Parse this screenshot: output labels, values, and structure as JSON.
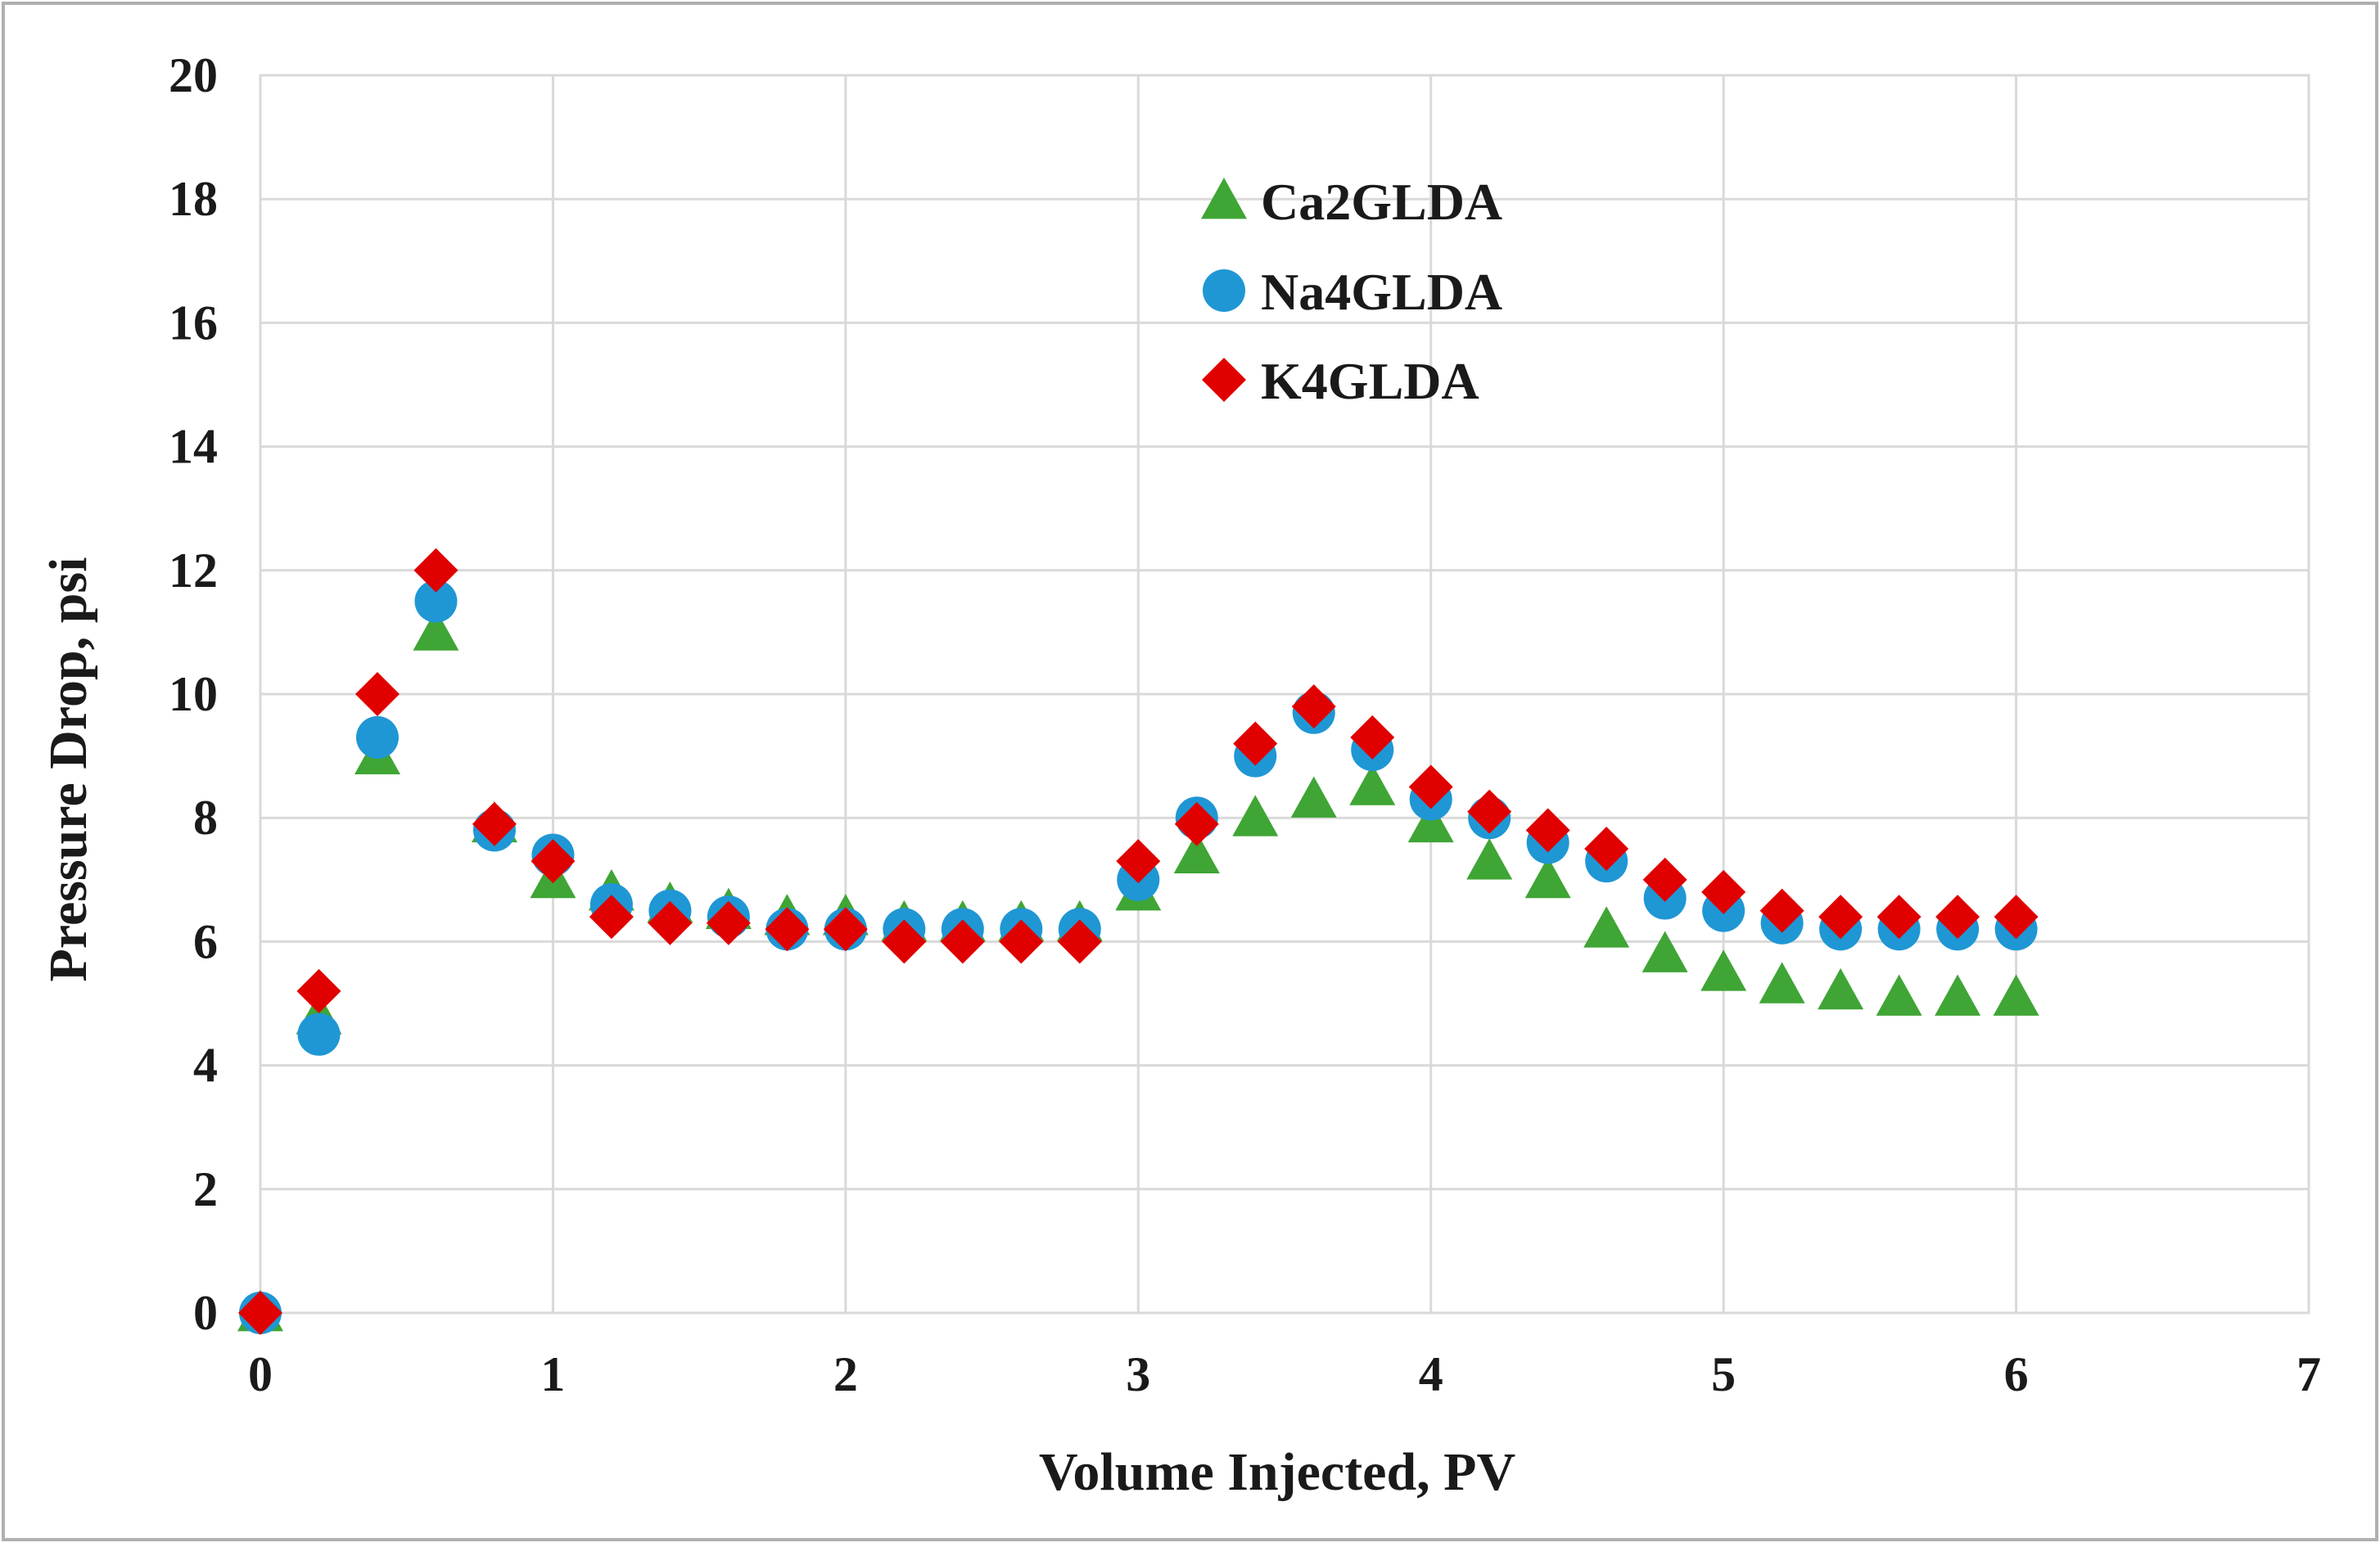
{
  "chart_data": {
    "type": "scatter",
    "title": "",
    "xlabel": "Volume Injected, PV",
    "ylabel": "Pressure Drop, psi",
    "xlim": [
      0,
      7
    ],
    "ylim": [
      0,
      20
    ],
    "xticks": [
      0,
      1,
      2,
      3,
      4,
      5,
      6,
      7
    ],
    "yticks": [
      0,
      2,
      4,
      6,
      8,
      10,
      12,
      14,
      16,
      18,
      20
    ],
    "grid": true,
    "legend_position": "top-center",
    "x": [
      0,
      0.2,
      0.4,
      0.6,
      0.8,
      1.0,
      1.2,
      1.4,
      1.6,
      1.8,
      2.0,
      2.2,
      2.4,
      2.6,
      2.8,
      3.0,
      3.2,
      3.4,
      3.6,
      3.8,
      4.0,
      4.2,
      4.4,
      4.6,
      4.8,
      5.0,
      5.2,
      5.4,
      5.6,
      5.8,
      6.0
    ],
    "series": [
      {
        "name": "Ca2GLDA",
        "marker": "triangle",
        "color": "#3FA535",
        "values": [
          0,
          4.8,
          9.0,
          11.0,
          7.9,
          7.0,
          6.8,
          6.6,
          6.5,
          6.4,
          6.4,
          6.3,
          6.3,
          6.3,
          6.3,
          6.8,
          7.4,
          8.0,
          8.3,
          8.5,
          7.9,
          7.3,
          7.0,
          6.2,
          5.8,
          5.5,
          5.3,
          5.2,
          5.1,
          5.1,
          5.1
        ]
      },
      {
        "name": "Na4GLDA",
        "marker": "circle",
        "color": "#1F97D4",
        "values": [
          0,
          4.5,
          9.3,
          11.5,
          7.8,
          7.4,
          6.6,
          6.5,
          6.4,
          6.2,
          6.2,
          6.2,
          6.2,
          6.2,
          6.2,
          7.0,
          8.0,
          9.0,
          9.7,
          9.1,
          8.3,
          8.0,
          7.6,
          7.3,
          6.7,
          6.5,
          6.3,
          6.2,
          6.2,
          6.2,
          6.2
        ]
      },
      {
        "name": "K4GLDA",
        "marker": "diamond",
        "color": "#E00000",
        "values": [
          0,
          5.2,
          10.0,
          12.0,
          7.9,
          7.3,
          6.4,
          6.3,
          6.3,
          6.2,
          6.2,
          6.0,
          6.0,
          6.0,
          6.0,
          7.3,
          7.9,
          9.2,
          9.8,
          9.3,
          8.5,
          8.1,
          7.8,
          7.5,
          7.0,
          6.8,
          6.5,
          6.4,
          6.4,
          6.4,
          6.4
        ]
      }
    ]
  }
}
